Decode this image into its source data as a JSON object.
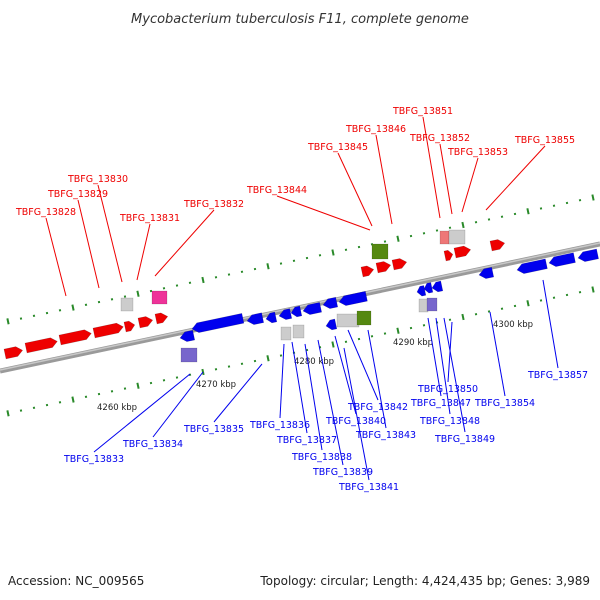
{
  "title": "Mycobacterium tuberculosis F11, complete genome",
  "footer": {
    "accession": "Accession: NC_009565",
    "summary": "Topology: circular; Length: 4,424,435 bp; Genes: 3,989"
  },
  "colors": {
    "forward": "#ee0000",
    "reverse": "#0000ee",
    "backbone": "#8a8a8a",
    "gray_feature": "#cccccc",
    "pink_feature": "#ee3399",
    "green_feature": "#558811",
    "purple_feature": "#7766cc",
    "salmon_feature": "#ee7777",
    "tick": "#2a8a2a"
  },
  "scale_labels": [
    "4260 kbp",
    "4270 kbp",
    "4280 kbp",
    "4290 kbp",
    "4300 kbp"
  ],
  "top_labels": [
    "TBFG_13828",
    "TBFG_13829",
    "TBFG_13830",
    "TBFG_13831",
    "TBFG_13832",
    "TBFG_13844",
    "TBFG_13845",
    "TBFG_13846",
    "TBFG_13851",
    "TBFG_13852",
    "TBFG_13853",
    "TBFG_13855"
  ],
  "bottom_labels": [
    "TBFG_13833",
    "TBFG_13834",
    "TBFG_13835",
    "TBFG_13836",
    "TBFG_13837",
    "TBFG_13838",
    "TBFG_13839",
    "TBFG_13840",
    "TBFG_13841",
    "TBFG_13842",
    "TBFG_13843",
    "TBFG_13847",
    "TBFG_13848",
    "TBFG_13849",
    "TBFG_13850",
    "TBFG_13854",
    "TBFG_13857"
  ]
}
